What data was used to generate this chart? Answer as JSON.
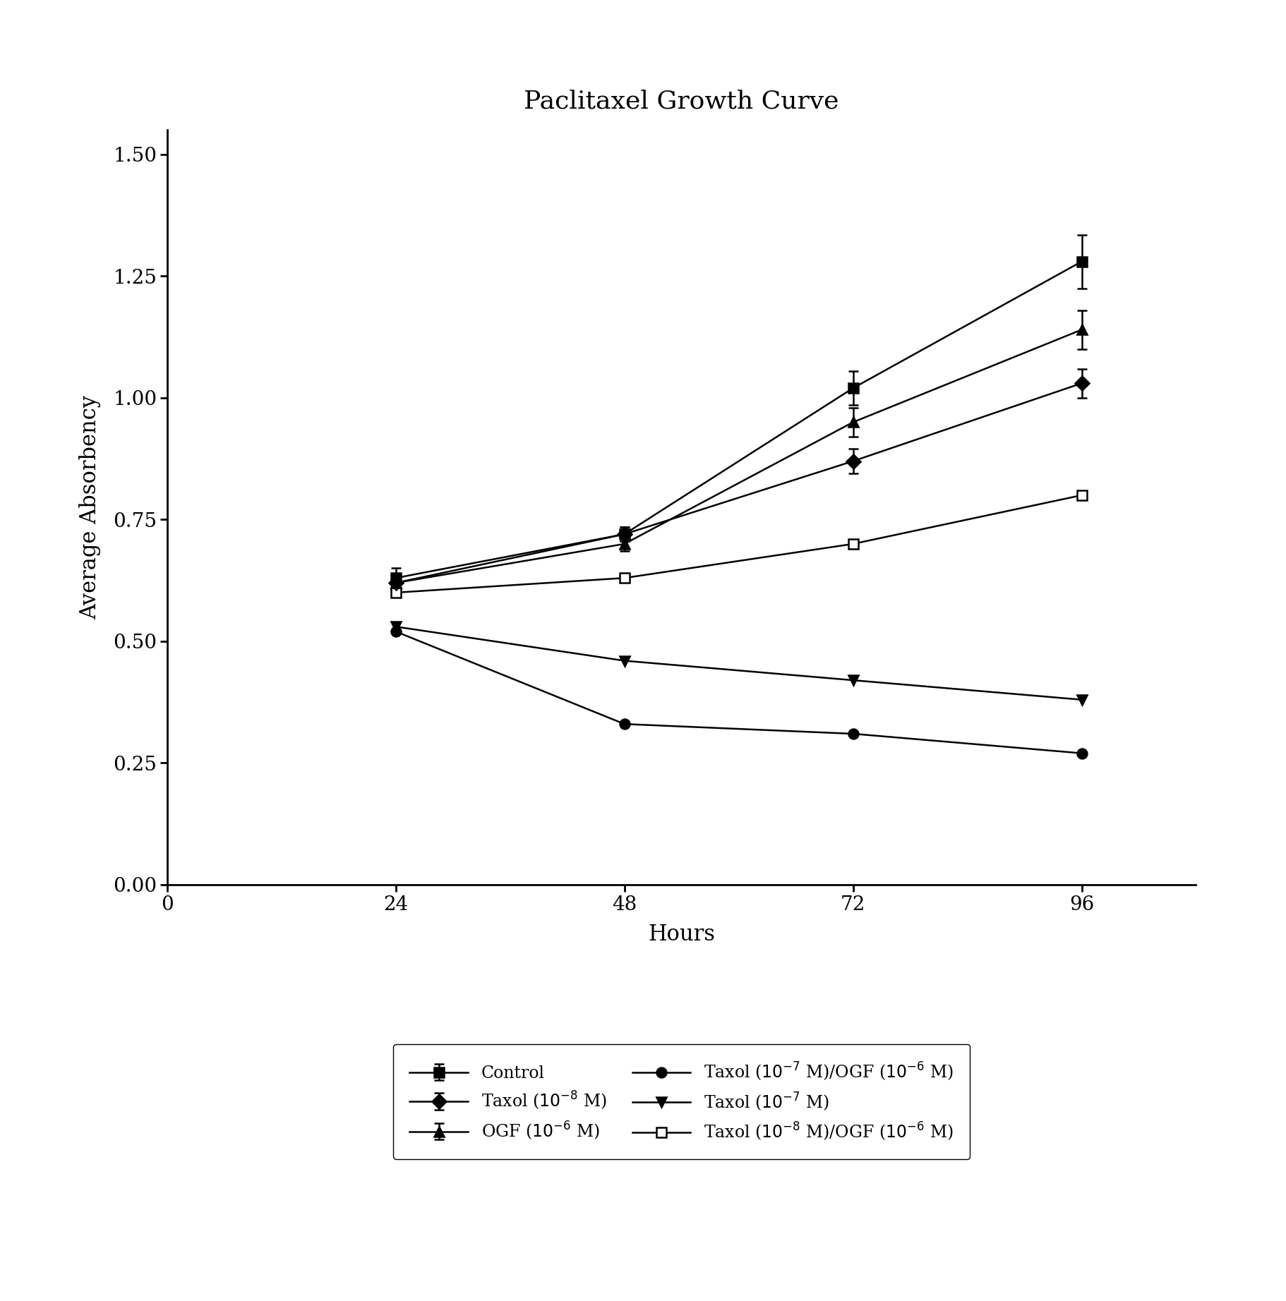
{
  "title": "Paclitaxel Growth Curve",
  "xlabel": "Hours",
  "ylabel": "Average Absorbency",
  "x": [
    24,
    48,
    72,
    96
  ],
  "xlim": [
    0,
    108
  ],
  "ylim": [
    0.0,
    1.55
  ],
  "yticks": [
    0.0,
    0.25,
    0.5,
    0.75,
    1.0,
    1.25,
    1.5
  ],
  "xticks": [
    0,
    24,
    48,
    72,
    96
  ],
  "series": [
    {
      "key": "Control",
      "y": [
        0.63,
        0.72,
        1.02,
        1.28
      ],
      "yerr": [
        0.02,
        0.015,
        0.035,
        0.055
      ],
      "marker": "s",
      "fillstyle": "full",
      "label": "Control"
    },
    {
      "key": "OGF",
      "y": [
        0.62,
        0.7,
        0.95,
        1.14
      ],
      "yerr": [
        0.015,
        0.015,
        0.03,
        0.04
      ],
      "marker": "^",
      "fillstyle": "full",
      "label": "OGF (10$^{-6}$ M)"
    },
    {
      "key": "Taxol_1e-7",
      "y": [
        0.53,
        0.46,
        0.42,
        0.38
      ],
      "marker": "v",
      "fillstyle": "full",
      "label": "Taxol (10$^{-7}$ M)"
    },
    {
      "key": "Taxol_1e-8",
      "y": [
        0.62,
        0.72,
        0.87,
        1.03
      ],
      "yerr": [
        0.015,
        0.015,
        0.025,
        0.03
      ],
      "marker": "D",
      "fillstyle": "full",
      "label": "Taxol (10$^{-8}$ M)"
    },
    {
      "key": "Taxol_1e-7_OGF",
      "y": [
        0.52,
        0.33,
        0.31,
        0.27
      ],
      "marker": "o",
      "fillstyle": "full",
      "label": "Taxol (10$^{-7}$ M)/OGF (10$^{-6}$ M)"
    },
    {
      "key": "Taxol_1e-8_OGF",
      "y": [
        0.6,
        0.63,
        0.7,
        0.8
      ],
      "marker": "s",
      "fillstyle": "none",
      "label": "Taxol (10$^{-8}$ M)/OGF (10$^{-6}$ M)"
    }
  ],
  "color": "#000000",
  "linewidth": 1.8,
  "markersize": 10,
  "title_fontsize": 26,
  "label_fontsize": 22,
  "tick_fontsize": 20,
  "legend_fontsize": 17
}
